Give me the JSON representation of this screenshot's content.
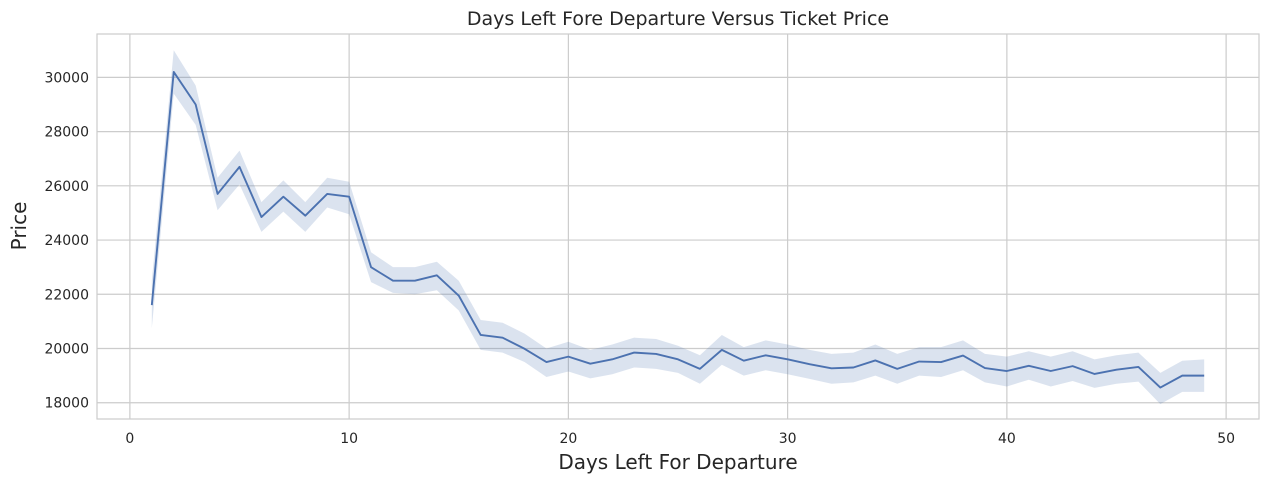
{
  "chart_data": {
    "type": "line",
    "title": "Days Left Fore Departure Versus Ticket Price",
    "xlabel": "Days Left For Departure",
    "ylabel": "Price",
    "xlim": [
      -1.5,
      51.5
    ],
    "ylim": [
      17400,
      31600
    ],
    "xticks": [
      0,
      10,
      20,
      30,
      40,
      50
    ],
    "yticks": [
      18000,
      20000,
      22000,
      24000,
      26000,
      28000,
      30000
    ],
    "grid": true,
    "line_color": "#4c72b0",
    "band_color": "#4c72b0",
    "x": [
      1,
      2,
      3,
      4,
      5,
      6,
      7,
      8,
      9,
      10,
      11,
      12,
      13,
      14,
      15,
      16,
      17,
      18,
      19,
      20,
      21,
      22,
      23,
      24,
      25,
      26,
      27,
      28,
      29,
      30,
      31,
      32,
      33,
      34,
      35,
      36,
      37,
      38,
      39,
      40,
      41,
      42,
      43,
      44,
      45,
      46,
      47,
      48,
      49
    ],
    "y": [
      21600,
      30200,
      29000,
      25700,
      26700,
      24850,
      25600,
      24900,
      25700,
      25600,
      23000,
      22500,
      22500,
      22700,
      21950,
      20500,
      20400,
      19990,
      19500,
      19700,
      19440,
      19600,
      19850,
      19800,
      19600,
      19250,
      19950,
      19550,
      19750,
      19600,
      19420,
      19270,
      19300,
      19560,
      19250,
      19520,
      19500,
      19740,
      19280,
      19170,
      19360,
      19170,
      19350,
      19060,
      19220,
      19320,
      18560,
      19000,
      19000
    ],
    "ci_lower": [
      20750,
      29400,
      28250,
      25100,
      26050,
      24300,
      25050,
      24300,
      25200,
      24950,
      22450,
      22050,
      22000,
      22150,
      21400,
      19950,
      19850,
      19500,
      18950,
      19150,
      18900,
      19050,
      19300,
      19250,
      19100,
      18700,
      19400,
      19000,
      19200,
      19050,
      18880,
      18700,
      18750,
      19000,
      18700,
      19000,
      18950,
      19200,
      18750,
      18600,
      18850,
      18600,
      18800,
      18550,
      18700,
      18780,
      17950,
      18400,
      18400
    ],
    "ci_upper": [
      22500,
      31000,
      29700,
      26300,
      27300,
      25400,
      26200,
      25400,
      26300,
      26150,
      23550,
      23000,
      23000,
      23200,
      22500,
      21050,
      20950,
      20550,
      20000,
      20250,
      19950,
      20150,
      20400,
      20350,
      20100,
      19750,
      20500,
      20050,
      20300,
      20150,
      19950,
      19800,
      19850,
      20150,
      19800,
      20050,
      20050,
      20300,
      19800,
      19700,
      19900,
      19700,
      19900,
      19600,
      19750,
      19850,
      19100,
      19550,
      19600
    ]
  }
}
